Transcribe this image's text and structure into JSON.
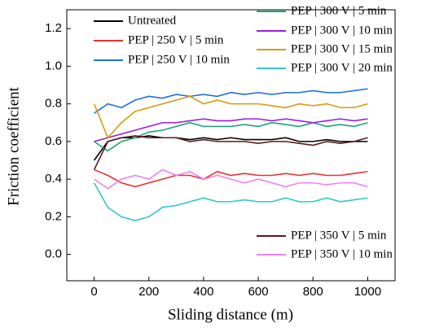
{
  "chart_data": {
    "type": "line",
    "xlabel": "Sliding distance (m)",
    "ylabel": "Friction coefficient",
    "x": [
      0,
      50,
      100,
      150,
      200,
      250,
      300,
      350,
      400,
      450,
      500,
      550,
      600,
      650,
      700,
      750,
      800,
      850,
      900,
      950,
      1000
    ],
    "series": [
      {
        "name": "Untreated",
        "color": "#000000",
        "values": [
          0.5,
          0.6,
          0.62,
          0.62,
          0.63,
          0.62,
          0.62,
          0.61,
          0.62,
          0.61,
          0.62,
          0.61,
          0.61,
          0.61,
          0.62,
          0.6,
          0.6,
          0.61,
          0.6,
          0.6,
          0.6
        ]
      },
      {
        "name": "PEP | 250 V | 5 min",
        "color": "#e8302f",
        "values": [
          0.45,
          0.42,
          0.38,
          0.36,
          0.38,
          0.4,
          0.42,
          0.42,
          0.4,
          0.44,
          0.42,
          0.43,
          0.42,
          0.42,
          0.43,
          0.42,
          0.43,
          0.42,
          0.42,
          0.43,
          0.44
        ]
      },
      {
        "name": "PEP | 250 V | 10 min",
        "color": "#1f6fe0",
        "values": [
          0.75,
          0.8,
          0.78,
          0.82,
          0.84,
          0.83,
          0.85,
          0.84,
          0.85,
          0.84,
          0.86,
          0.85,
          0.86,
          0.85,
          0.86,
          0.86,
          0.87,
          0.86,
          0.86,
          0.87,
          0.88
        ]
      },
      {
        "name": "PEP | 300 V | 5 min",
        "color": "#1aa37a",
        "values": [
          0.6,
          0.55,
          0.6,
          0.62,
          0.65,
          0.66,
          0.68,
          0.7,
          0.68,
          0.68,
          0.68,
          0.69,
          0.68,
          0.7,
          0.69,
          0.68,
          0.7,
          0.68,
          0.69,
          0.68,
          0.7
        ]
      },
      {
        "name": "PEP | 300 V | 10 min",
        "color": "#9b1ce0",
        "values": [
          0.6,
          0.62,
          0.64,
          0.66,
          0.68,
          0.7,
          0.7,
          0.71,
          0.72,
          0.71,
          0.71,
          0.72,
          0.72,
          0.71,
          0.72,
          0.71,
          0.7,
          0.71,
          0.72,
          0.71,
          0.72
        ]
      },
      {
        "name": "PEP | 300 V | 15 min",
        "color": "#d99a10",
        "values": [
          0.8,
          0.62,
          0.7,
          0.76,
          0.78,
          0.8,
          0.82,
          0.84,
          0.8,
          0.82,
          0.8,
          0.8,
          0.8,
          0.79,
          0.78,
          0.8,
          0.79,
          0.8,
          0.78,
          0.78,
          0.8
        ]
      },
      {
        "name": "PEP | 300 V | 20 min",
        "color": "#30c8c8",
        "values": [
          0.38,
          0.25,
          0.2,
          0.18,
          0.2,
          0.25,
          0.26,
          0.28,
          0.3,
          0.28,
          0.28,
          0.29,
          0.28,
          0.28,
          0.3,
          0.28,
          0.28,
          0.3,
          0.28,
          0.29,
          0.3
        ]
      },
      {
        "name": "PEP | 350 V | 5 min",
        "color": "#5a1a1a",
        "values": [
          0.45,
          0.6,
          0.62,
          0.63,
          0.62,
          0.62,
          0.62,
          0.6,
          0.61,
          0.6,
          0.6,
          0.6,
          0.59,
          0.6,
          0.6,
          0.59,
          0.58,
          0.6,
          0.59,
          0.6,
          0.62
        ]
      },
      {
        "name": "PEP | 350 V | 10 min",
        "color": "#f080f0",
        "values": [
          0.4,
          0.35,
          0.4,
          0.42,
          0.4,
          0.45,
          0.42,
          0.44,
          0.4,
          0.42,
          0.4,
          0.38,
          0.4,
          0.38,
          0.36,
          0.38,
          0.38,
          0.37,
          0.38,
          0.38,
          0.36
        ]
      }
    ],
    "xlim": [
      -100,
      1100
    ],
    "xticks": [
      0,
      200,
      400,
      600,
      800,
      1000
    ],
    "ylim": [
      -0.14,
      1.3
    ],
    "yticks": [
      {
        "value": 0,
        "label": "0.0"
      },
      0.2,
      0.4,
      0.6,
      0.8,
      {
        "value": 1,
        "label": "1.0"
      },
      1.2
    ]
  }
}
